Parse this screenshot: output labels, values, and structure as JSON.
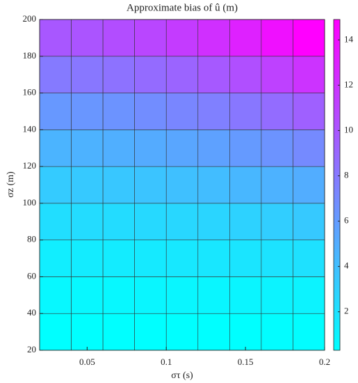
{
  "chart_data": {
    "type": "heatmap",
    "title": "Approximate bias of û (m)",
    "xlabel": "στ (s)",
    "ylabel": "σz (m)",
    "x": [
      0.03,
      0.05,
      0.07,
      0.09,
      0.11,
      0.13,
      0.15,
      0.17,
      0.19
    ],
    "y": [
      30,
      50,
      70,
      90,
      110,
      130,
      150,
      170,
      190
    ],
    "z": [
      [
        0.3,
        0.3,
        0.3,
        0.3,
        0.3,
        0.3,
        0.3,
        0.4,
        0.4
      ],
      [
        0.7,
        0.7,
        0.7,
        0.8,
        0.8,
        0.8,
        0.9,
        1.0,
        1.0
      ],
      [
        1.3,
        1.4,
        1.4,
        1.5,
        1.6,
        1.7,
        1.8,
        1.9,
        2.0
      ],
      [
        2.2,
        2.3,
        2.3,
        2.5,
        2.6,
        2.7,
        2.9,
        3.1,
        3.4
      ],
      [
        3.3,
        3.4,
        3.5,
        3.7,
        3.9,
        4.1,
        4.4,
        4.7,
        5.0
      ],
      [
        4.6,
        4.7,
        4.9,
        5.1,
        5.4,
        5.7,
        6.1,
        6.5,
        7.0
      ],
      [
        6.2,
        6.3,
        6.5,
        6.8,
        7.2,
        7.6,
        8.1,
        8.7,
        9.4
      ],
      [
        7.9,
        8.1,
        8.4,
        8.8,
        9.2,
        9.8,
        10.4,
        11.2,
        12.0
      ],
      [
        9.9,
        10.1,
        10.5,
        10.9,
        11.5,
        12.2,
        13.0,
        14.0,
        14.9
      ]
    ],
    "xlim": [
      0.02,
      0.2
    ],
    "xticks": [
      0.05,
      0.1,
      0.15,
      0.2
    ],
    "ylim": [
      20,
      200
    ],
    "yticks": [
      20,
      40,
      60,
      80,
      100,
      120,
      140,
      160,
      180,
      200
    ],
    "clim": [
      0.3,
      14.9
    ],
    "cticks": [
      2,
      4,
      6,
      8,
      10,
      12,
      14
    ],
    "colormap": [
      "#00ffff",
      "#ff00ff"
    ]
  }
}
